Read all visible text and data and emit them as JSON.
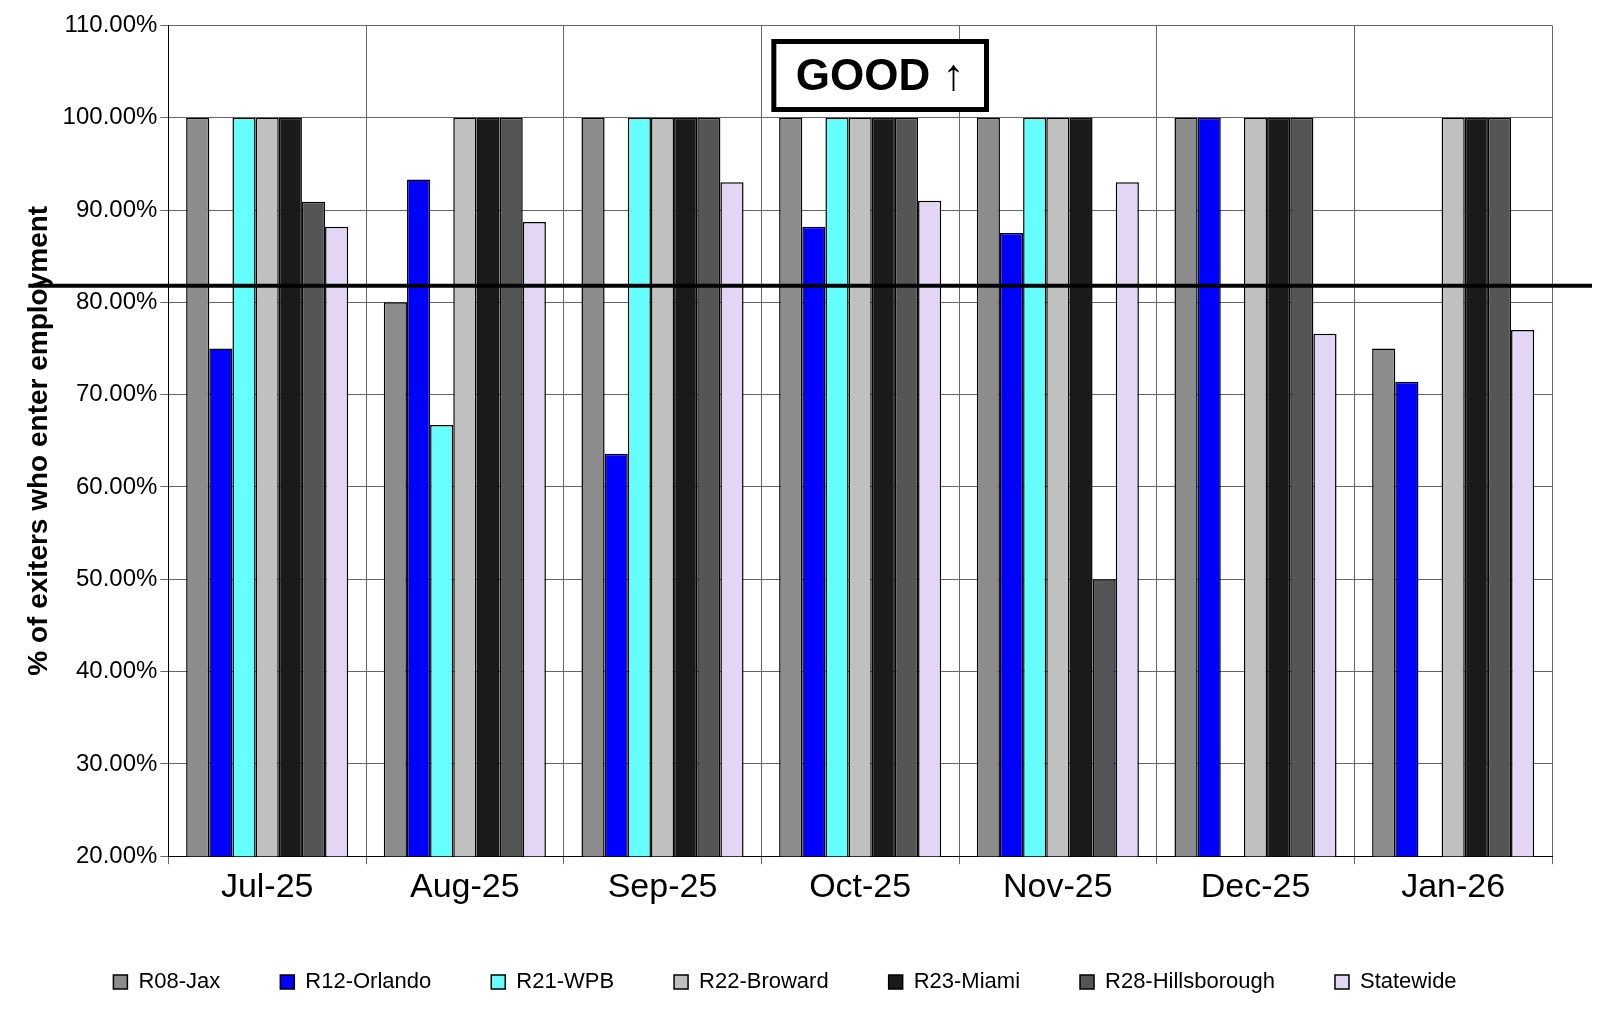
{
  "chart_data": {
    "type": "bar",
    "ylabel": "% of exiters who enter employment",
    "categories": [
      "Jul-25",
      "Aug-25",
      "Sep-25",
      "Oct-25",
      "Nov-25",
      "Dec-25",
      "Jan-26"
    ],
    "series": [
      {
        "name": "R08-Jax",
        "color": "#8c8c8c",
        "values": [
          100,
          80,
          100,
          100,
          100,
          100,
          75
        ]
      },
      {
        "name": "R12-Orlando",
        "color": "#0000ff",
        "values": [
          75,
          93.3,
          63.6,
          88.2,
          87.5,
          100,
          71.4
        ]
      },
      {
        "name": "R21-WPB",
        "color": "#66ffff",
        "values": [
          100,
          66.7,
          100,
          100,
          100,
          null,
          null
        ]
      },
      {
        "name": "R22-Broward",
        "color": "#c0c0c0",
        "values": [
          100,
          100,
          100,
          100,
          100,
          100,
          100
        ]
      },
      {
        "name": "R23-Miami",
        "color": "#1a1a1a",
        "values": [
          100,
          100,
          100,
          100,
          100,
          100,
          100
        ]
      },
      {
        "name": "R28-Hillsborough",
        "color": "#555555",
        "values": [
          90.9,
          100,
          100,
          100,
          50,
          100,
          100
        ]
      },
      {
        "name": "Statewide",
        "color": "#e3d6f5",
        "values": [
          88.2,
          88.7,
          93,
          91,
          93,
          76.6,
          77
        ]
      }
    ],
    "ylim": [
      20,
      110
    ],
    "yticks": [
      {
        "value": 20,
        "label": "20.00%"
      },
      {
        "value": 30,
        "label": "30.00%"
      },
      {
        "value": 40,
        "label": "40.00%"
      },
      {
        "value": 50,
        "label": "50.00%"
      },
      {
        "value": 60,
        "label": "60.00%"
      },
      {
        "value": 70,
        "label": "70.00%"
      },
      {
        "value": 80,
        "label": "80.00%"
      },
      {
        "value": 90,
        "label": "90.00%"
      },
      {
        "value": 100,
        "label": "100.00%"
      },
      {
        "value": 110,
        "label": "110.00%"
      }
    ],
    "ref_lines": [
      {
        "axis": "y",
        "value": 81.8,
        "color": "#000000"
      }
    ],
    "annotations": [
      "GOOD ↑"
    ],
    "grid": true,
    "legend": "bottom"
  }
}
